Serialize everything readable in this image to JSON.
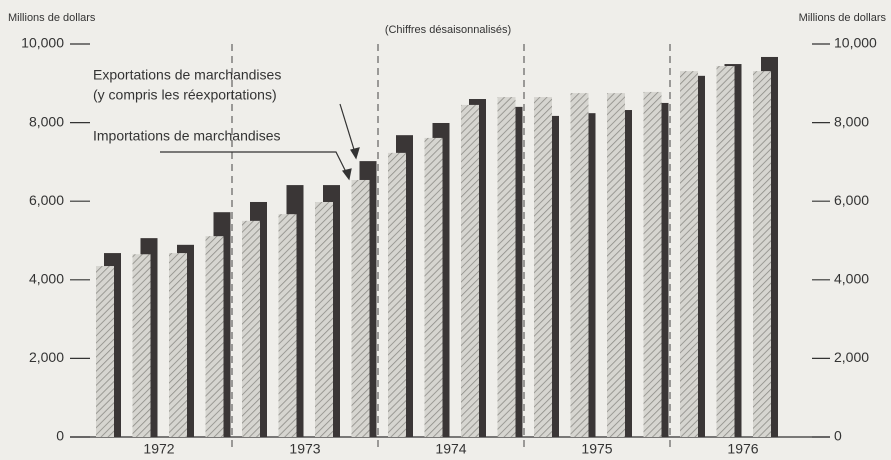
{
  "chart_data": {
    "type": "bar",
    "y_label": "Millions de dollars",
    "y2_label": "Millions de dollars",
    "annotation": "(Chiffres désaisonnalisés)",
    "years": [
      "1972",
      "1973",
      "1974",
      "1975",
      "1976"
    ],
    "categories": [
      null,
      null,
      null,
      null,
      null,
      null,
      null,
      null,
      null,
      null,
      null,
      null,
      null,
      null,
      null,
      null,
      null,
      null,
      null
    ],
    "series": [
      {
        "name": "Importations de marchandises",
        "color": "#c8c8c4",
        "values": [
          4350,
          4650,
          4680,
          5110,
          5500,
          5670,
          5980,
          6540,
          7230,
          7610,
          8450,
          8650,
          8650,
          8750,
          8750,
          8780,
          9310,
          9440,
          9310
        ]
      },
      {
        "name": "Exportations de marchandises",
        "name_note": "(y compris les réexportations)",
        "color": "#3a3636",
        "values": [
          4680,
          5060,
          4890,
          5720,
          5980,
          6410,
          6410,
          7020,
          7680,
          7990,
          8600,
          8400,
          8170,
          8240,
          8320,
          8500,
          9190,
          9490,
          9670
        ]
      }
    ],
    "ylim": [
      0,
      10000
    ],
    "yticks": [
      0,
      {
        "value": 2000,
        "label": "2,000"
      },
      {
        "value": 4000,
        "label": "4,000"
      },
      {
        "value": 6000,
        "label": "6,000"
      },
      {
        "value": 8000,
        "label": "8,000"
      },
      {
        "value": 10000,
        "label": "10,000"
      }
    ],
    "y2lim": [
      0,
      10000
    ],
    "y2ticks": [
      0,
      {
        "value": 2000,
        "label": "2,000"
      },
      {
        "value": 4000,
        "label": "4,000"
      },
      {
        "value": 6000,
        "label": "6,000"
      },
      {
        "value": 8000,
        "label": "8,000"
      },
      {
        "value": 10000,
        "label": "10,000"
      }
    ]
  }
}
